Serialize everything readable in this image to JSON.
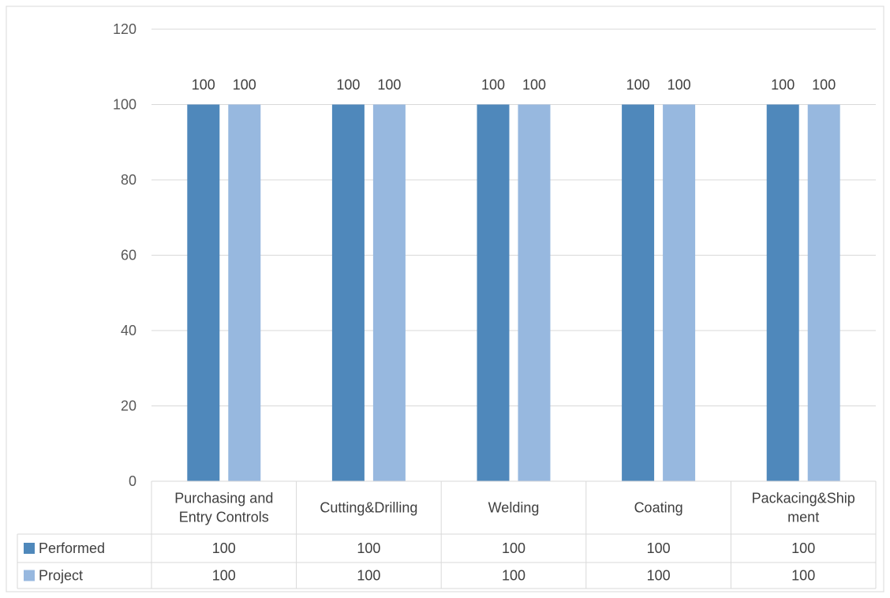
{
  "chart_data": {
    "type": "bar",
    "categories": [
      [
        "Purchasing and",
        "Entry Controls"
      ],
      [
        "Cutting&Drilling"
      ],
      [
        "Welding"
      ],
      [
        "Coating"
      ],
      [
        "Packacing&Ship",
        "ment"
      ]
    ],
    "series": [
      {
        "name": "Performed",
        "values": [
          100,
          100,
          100,
          100,
          100
        ],
        "color": "#4F88BB"
      },
      {
        "name": "Project",
        "values": [
          100,
          100,
          100,
          100,
          100
        ],
        "color": "#97B8DF"
      }
    ],
    "ylim": [
      0,
      120
    ],
    "yticks": [
      0,
      20,
      40,
      60,
      80,
      100,
      120
    ],
    "grid": true,
    "data_table": true
  }
}
